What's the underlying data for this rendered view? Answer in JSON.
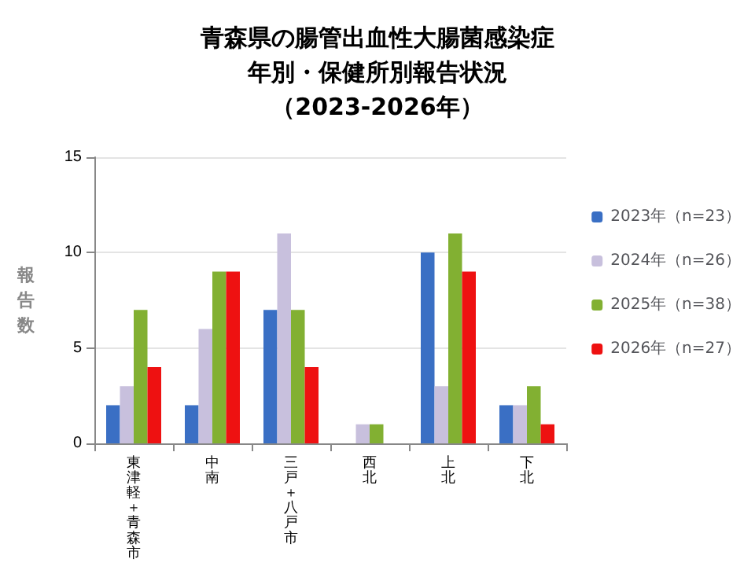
{
  "chart_data": {
    "type": "bar",
    "title": "青森県の腸管出血性大腸菌感染症",
    "subtitle": "年別・保健所別報告状況（2023-2026年）",
    "ylabel": "報告数",
    "categories": [
      "東津軽＋青森市",
      "中南",
      "三戸＋八戸市",
      "西北",
      "上北",
      "下北"
    ],
    "series": [
      {
        "name": "2023年（n=23）",
        "color": "#3a6fc4",
        "values": [
          2,
          2,
          7,
          0,
          10,
          2
        ]
      },
      {
        "name": "2024年（n=26）",
        "color": "#c8c0dd",
        "values": [
          3,
          6,
          11,
          1,
          3,
          2
        ]
      },
      {
        "name": "2025年（n=38）",
        "color": "#82b032",
        "values": [
          7,
          9,
          7,
          1,
          11,
          3
        ]
      },
      {
        "name": "2026年（n=27）",
        "color": "#ee1111",
        "values": [
          4,
          9,
          4,
          0,
          9,
          1
        ]
      }
    ],
    "ylim": [
      0,
      15
    ],
    "yticks": [
      0,
      5,
      10,
      15
    ],
    "grid": "y",
    "legend": "right"
  }
}
